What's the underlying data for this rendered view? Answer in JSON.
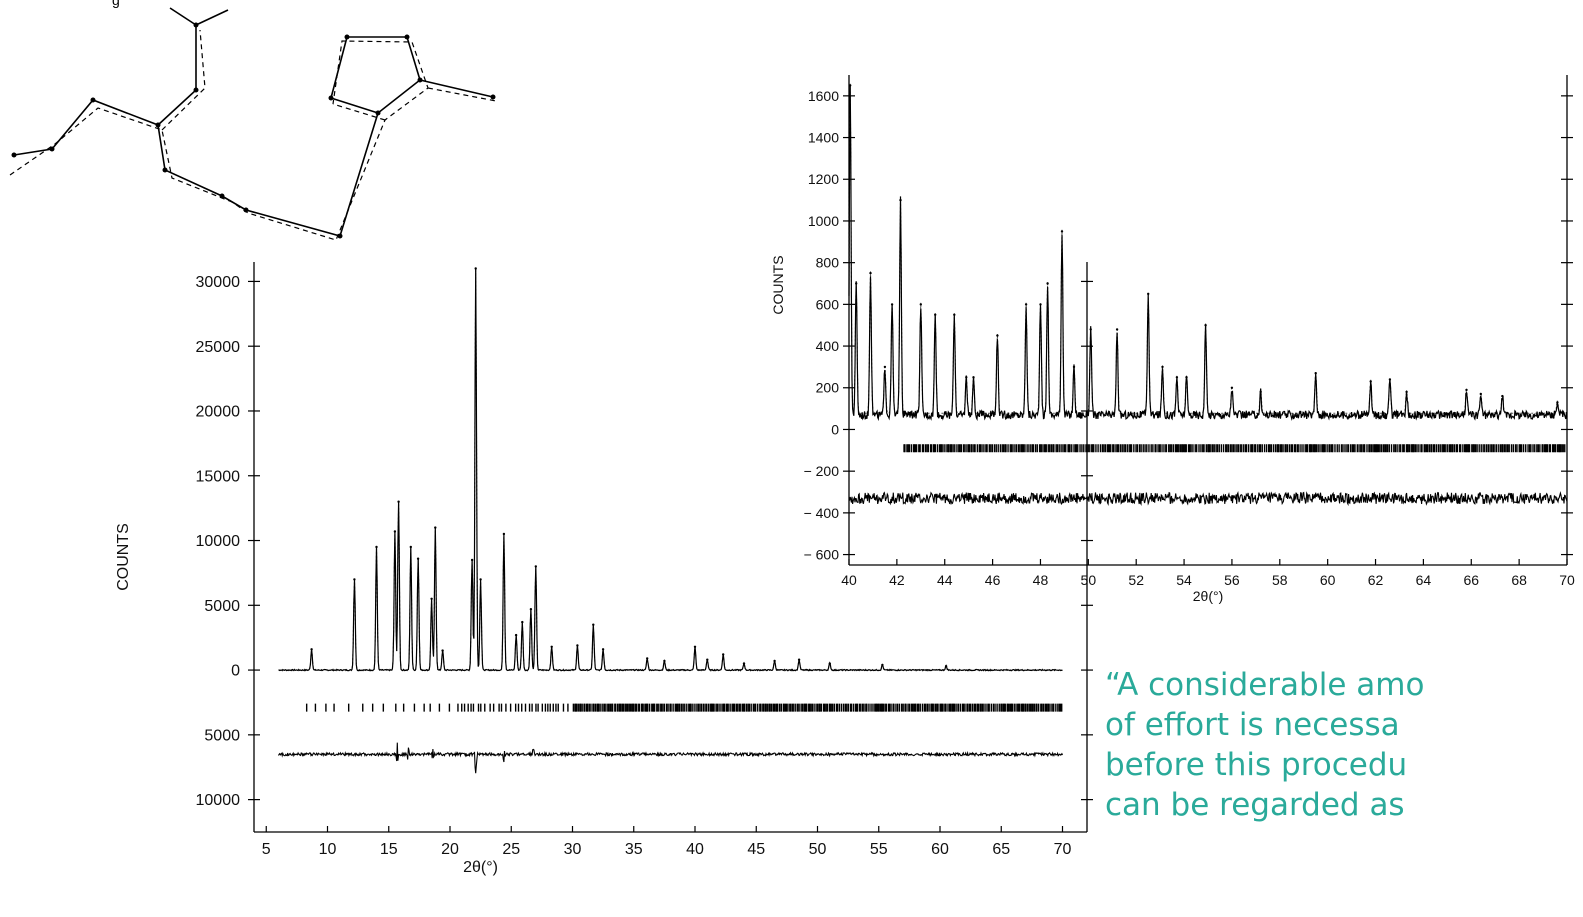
{
  "top_fragment": "g",
  "quote": "“A considerable amo\nof effort is necessa\nbefore this procedu\ncan be regarded as",
  "colors": {
    "quote": "#2aaa9a",
    "ink": "#000000"
  },
  "chart_data": [
    {
      "type": "line",
      "ylabel": "COUNTS",
      "xlabel": "2θ(°)",
      "xlim": [
        4,
        72
      ],
      "ylim": [
        -12500,
        31500
      ],
      "x_ticks": [
        5,
        10,
        15,
        20,
        25,
        30,
        35,
        40,
        45,
        50,
        55,
        60,
        65,
        70
      ],
      "y_ticks": [
        {
          "value": 30000,
          "label": "30000"
        },
        {
          "value": 25000,
          "label": "25000"
        },
        {
          "value": 20000,
          "label": "20000"
        },
        {
          "value": 15000,
          "label": "15000"
        },
        {
          "value": 10000,
          "label": "10000"
        },
        {
          "value": 5000,
          "label": "5000"
        },
        {
          "value": 0,
          "label": "0"
        },
        {
          "value": -5000,
          "label": "5000"
        },
        {
          "value": -10000,
          "label": "10000"
        }
      ],
      "pattern_range": [
        6,
        70
      ],
      "peaks": [
        {
          "x": 8.7,
          "y": 1600
        },
        {
          "x": 12.2,
          "y": 7000
        },
        {
          "x": 14.0,
          "y": 9500
        },
        {
          "x": 15.5,
          "y": 10700
        },
        {
          "x": 15.8,
          "y": 13000
        },
        {
          "x": 16.8,
          "y": 9500
        },
        {
          "x": 17.4,
          "y": 8600
        },
        {
          "x": 18.5,
          "y": 5500
        },
        {
          "x": 18.8,
          "y": 11000
        },
        {
          "x": 19.4,
          "y": 1500
        },
        {
          "x": 21.8,
          "y": 8500
        },
        {
          "x": 22.1,
          "y": 31000
        },
        {
          "x": 22.5,
          "y": 7000
        },
        {
          "x": 24.4,
          "y": 10500
        },
        {
          "x": 25.4,
          "y": 2700
        },
        {
          "x": 25.9,
          "y": 3700
        },
        {
          "x": 26.6,
          "y": 4700
        },
        {
          "x": 27.0,
          "y": 8000
        },
        {
          "x": 28.3,
          "y": 1800
        },
        {
          "x": 30.4,
          "y": 1900
        },
        {
          "x": 31.7,
          "y": 3500
        },
        {
          "x": 32.5,
          "y": 1600
        },
        {
          "x": 36.1,
          "y": 900
        },
        {
          "x": 37.5,
          "y": 700
        },
        {
          "x": 40.0,
          "y": 1800
        },
        {
          "x": 41.0,
          "y": 800
        },
        {
          "x": 42.3,
          "y": 1200
        },
        {
          "x": 44.0,
          "y": 500
        },
        {
          "x": 46.5,
          "y": 700
        },
        {
          "x": 48.5,
          "y": 800
        },
        {
          "x": 51.0,
          "y": 500
        },
        {
          "x": 55.3,
          "y": 400
        },
        {
          "x": 60.5,
          "y": 300
        }
      ],
      "reflection_marks_y": -2900,
      "difference_baseline_y": -6500,
      "difference_spikes": [
        {
          "x": 15.7,
          "y": 900
        },
        {
          "x": 16.6,
          "y": 500
        },
        {
          "x": 18.6,
          "y": 500
        },
        {
          "x": 22.1,
          "y": 1500
        },
        {
          "x": 24.4,
          "y": 500
        },
        {
          "x": 26.8,
          "y": 400
        }
      ]
    },
    {
      "type": "line",
      "ylabel": "COUNTS",
      "xlabel": "2θ(°)",
      "xlim": [
        40,
        70
      ],
      "ylim": [
        -650,
        1700
      ],
      "x_ticks": [
        40,
        42,
        44,
        46,
        48,
        50,
        52,
        54,
        56,
        58,
        60,
        62,
        64,
        66,
        68,
        70
      ],
      "y_ticks": [
        {
          "value": 1600,
          "label": "1600"
        },
        {
          "value": 1400,
          "label": "1400"
        },
        {
          "value": 1200,
          "label": "1200"
        },
        {
          "value": 1000,
          "label": "1000"
        },
        {
          "value": 800,
          "label": "800"
        },
        {
          "value": 600,
          "label": "600"
        },
        {
          "value": 400,
          "label": "400"
        },
        {
          "value": 200,
          "label": "200"
        },
        {
          "value": 0,
          "label": "0"
        },
        {
          "value": -200,
          "label": "− 200"
        },
        {
          "value": -400,
          "label": "− 400"
        },
        {
          "value": -600,
          "label": "− 600"
        }
      ],
      "background": 70,
      "peaks": [
        {
          "x": 40.05,
          "y": 1650
        },
        {
          "x": 40.3,
          "y": 700
        },
        {
          "x": 40.9,
          "y": 750
        },
        {
          "x": 41.5,
          "y": 300
        },
        {
          "x": 41.8,
          "y": 600
        },
        {
          "x": 42.15,
          "y": 1100
        },
        {
          "x": 43.0,
          "y": 600
        },
        {
          "x": 43.6,
          "y": 550
        },
        {
          "x": 44.4,
          "y": 550
        },
        {
          "x": 44.9,
          "y": 250
        },
        {
          "x": 45.2,
          "y": 250
        },
        {
          "x": 46.2,
          "y": 450
        },
        {
          "x": 47.4,
          "y": 600
        },
        {
          "x": 48.0,
          "y": 600
        },
        {
          "x": 48.3,
          "y": 700
        },
        {
          "x": 48.9,
          "y": 950
        },
        {
          "x": 49.4,
          "y": 300
        },
        {
          "x": 50.1,
          "y": 480
        },
        {
          "x": 51.2,
          "y": 480
        },
        {
          "x": 52.5,
          "y": 650
        },
        {
          "x": 53.1,
          "y": 300
        },
        {
          "x": 53.7,
          "y": 250
        },
        {
          "x": 54.1,
          "y": 250
        },
        {
          "x": 54.9,
          "y": 500
        },
        {
          "x": 56.0,
          "y": 200
        },
        {
          "x": 57.2,
          "y": 180
        },
        {
          "x": 59.5,
          "y": 270
        },
        {
          "x": 61.8,
          "y": 230
        },
        {
          "x": 62.6,
          "y": 240
        },
        {
          "x": 63.3,
          "y": 180
        },
        {
          "x": 65.8,
          "y": 190
        },
        {
          "x": 66.4,
          "y": 170
        },
        {
          "x": 67.3,
          "y": 160
        },
        {
          "x": 69.6,
          "y": 130
        }
      ],
      "reflection_marks_y": -90,
      "difference_baseline_y": -330
    }
  ]
}
